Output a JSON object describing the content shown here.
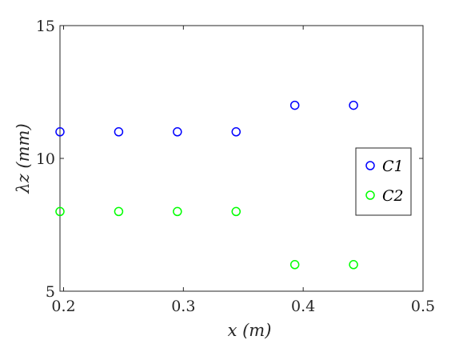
{
  "chart_data": {
    "type": "scatter",
    "title": "",
    "xlabel": "x (m)",
    "ylabel": "λz (mm)",
    "xlim": [
      0.197,
      0.5
    ],
    "ylim": [
      5,
      15
    ],
    "xticks": [
      0.2,
      0.3,
      0.4,
      0.5
    ],
    "xtick_labels": [
      "0.2",
      "0.3",
      "0.4",
      "0.5"
    ],
    "yticks": [
      5,
      10,
      15
    ],
    "ytick_labels": [
      "5",
      "10",
      "15"
    ],
    "grid": false,
    "legend_position": "right",
    "marker": "open-circle",
    "series": [
      {
        "name": "C1",
        "color": "#0000ff",
        "x": [
          0.197,
          0.246,
          0.295,
          0.344,
          0.393,
          0.442
        ],
        "y": [
          11,
          11,
          11,
          11,
          12,
          12
        ]
      },
      {
        "name": "C2",
        "color": "#00ff00",
        "x": [
          0.197,
          0.246,
          0.295,
          0.344,
          0.393,
          0.442
        ],
        "y": [
          8,
          8,
          8,
          8,
          6,
          6
        ]
      }
    ]
  }
}
